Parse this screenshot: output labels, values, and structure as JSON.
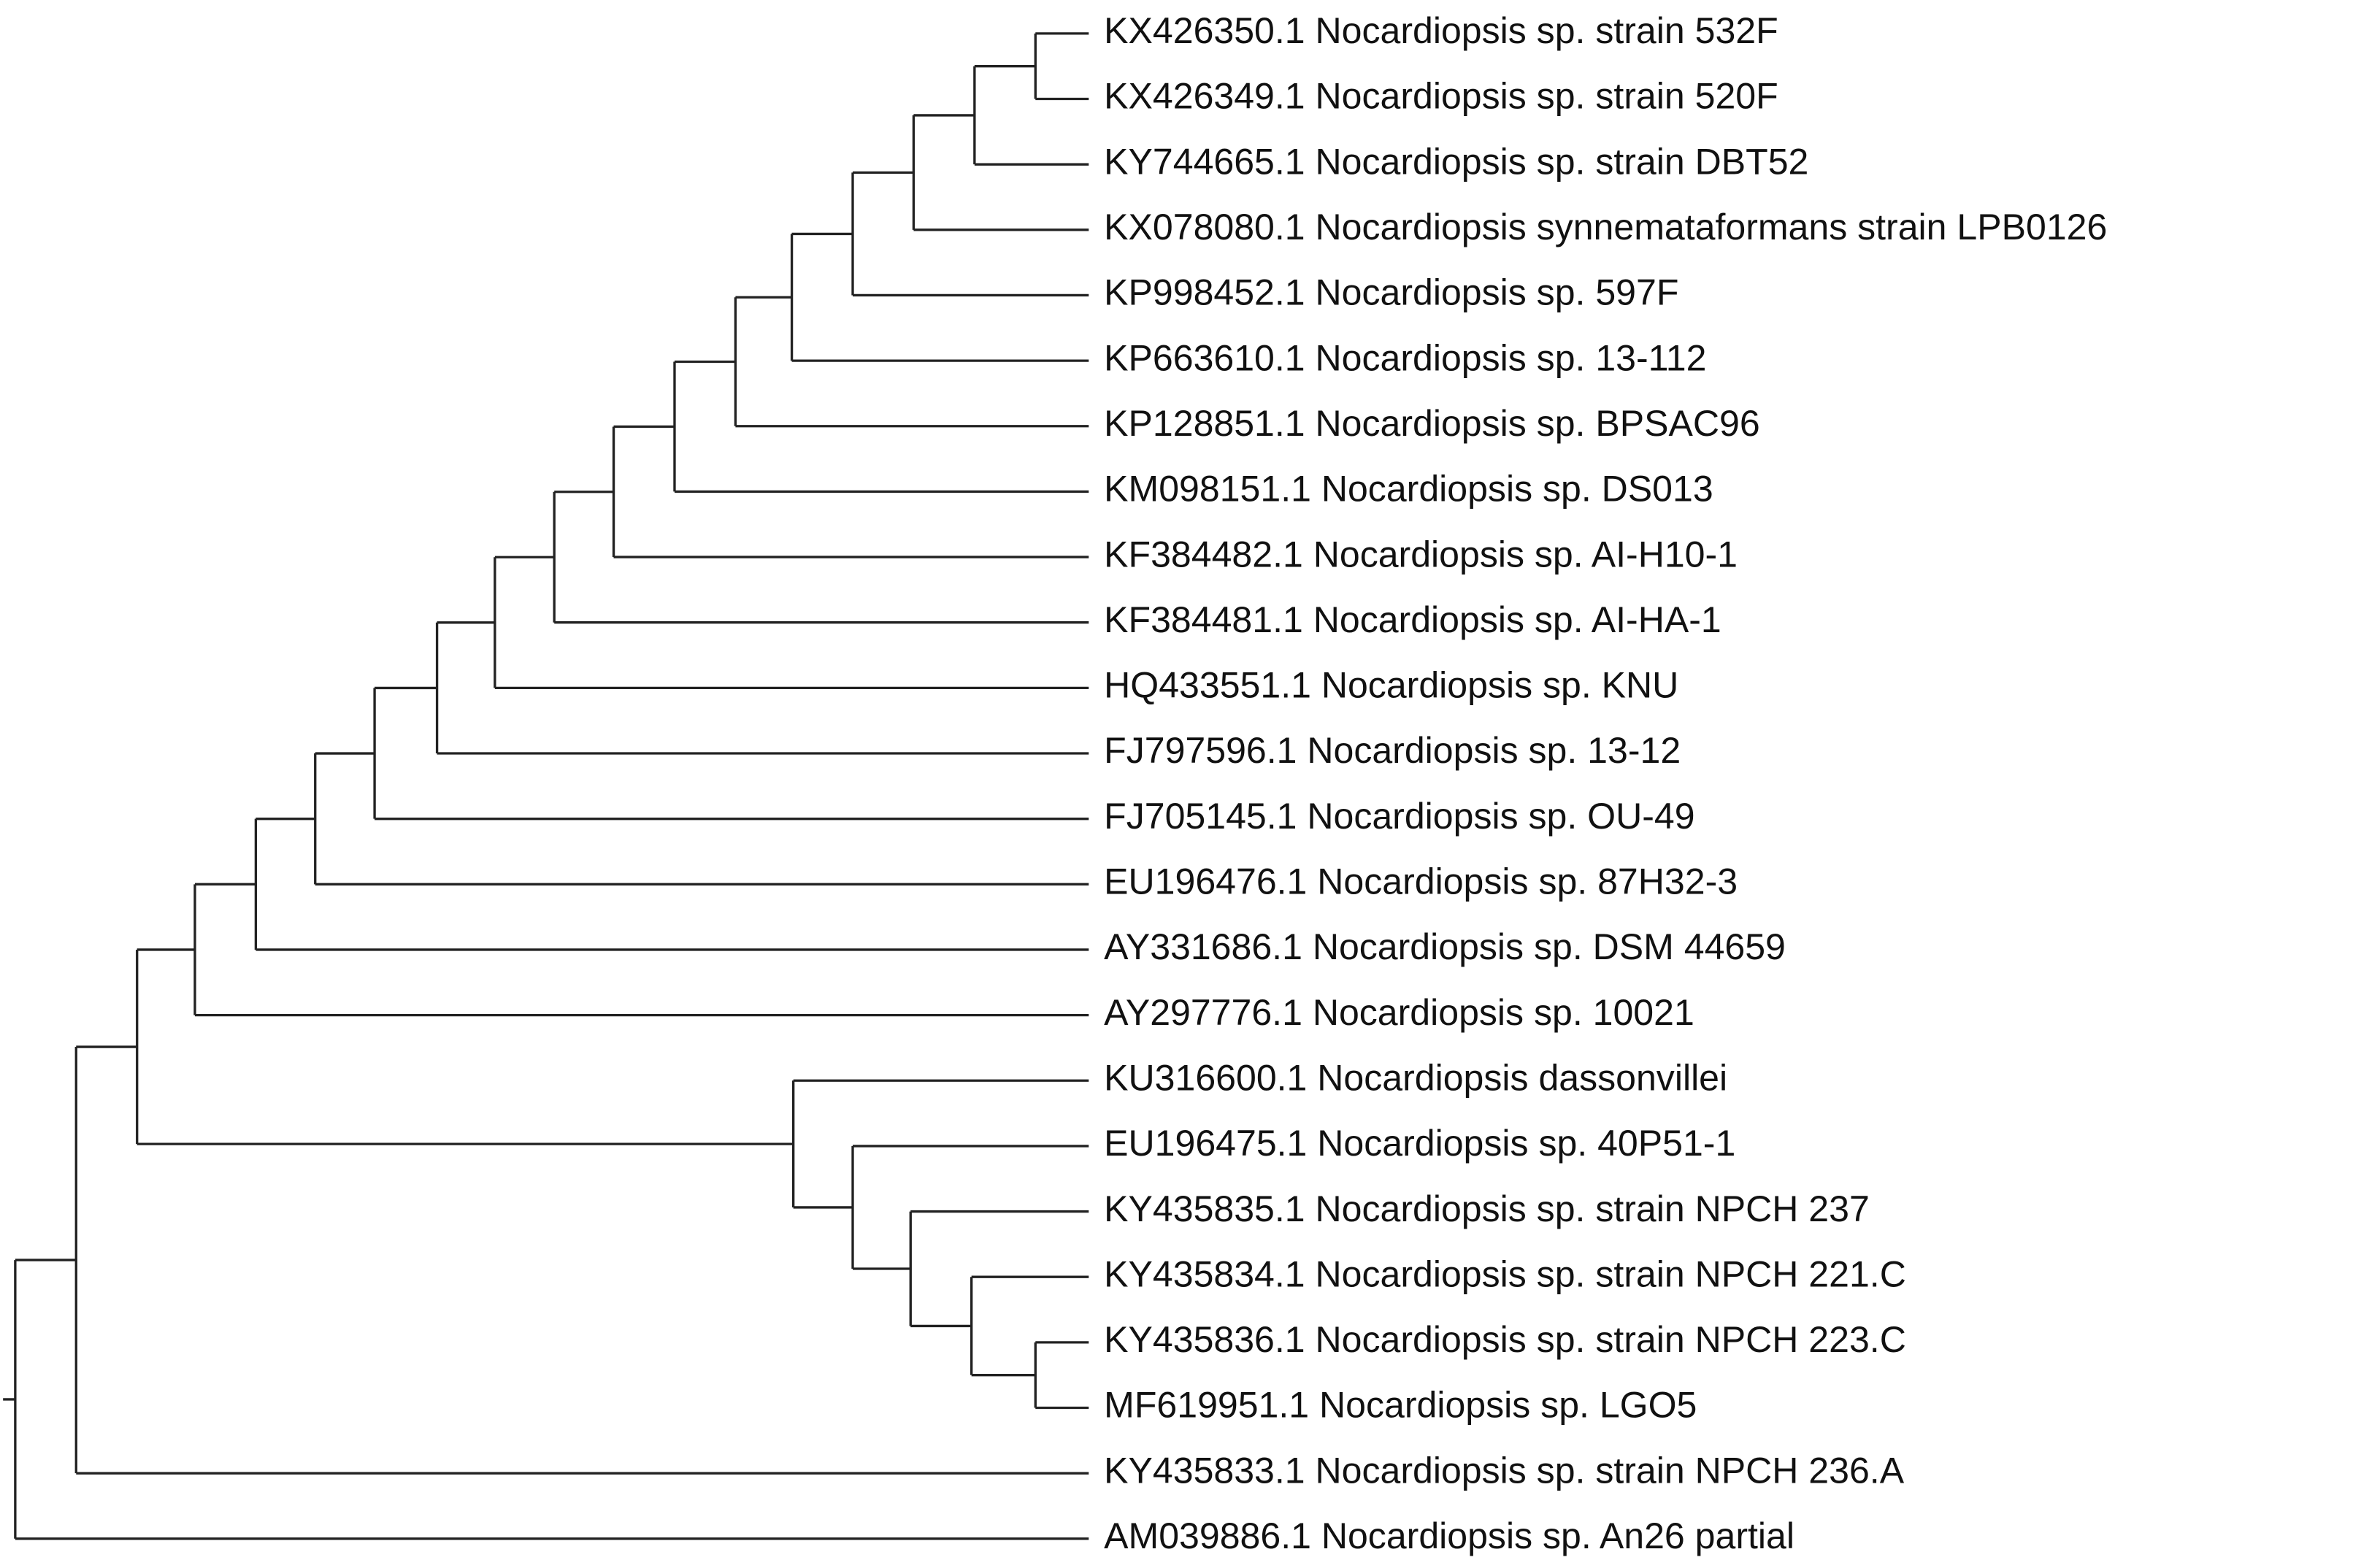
{
  "leaves": [
    "KX426350.1 Nocardiopsis sp. strain 532F",
    "KX426349.1 Nocardiopsis sp. strain 520F",
    "KY744665.1 Nocardiopsis sp. strain DBT52",
    "KX078080.1 Nocardiopsis synnemataformans strain LPB0126",
    "KP998452.1 Nocardiopsis sp. 597F",
    "KP663610.1 Nocardiopsis sp. 13-112",
    "KP128851.1 Nocardiopsis sp. BPSAC96",
    "KM098151.1 Nocardiopsis sp. DS013",
    "KF384482.1 Nocardiopsis sp. AI-H10-1",
    "KF384481.1 Nocardiopsis sp. AI-HA-1",
    "HQ433551.1 Nocardiopsis sp. KNU",
    "FJ797596.1 Nocardiopsis sp. 13-12",
    "FJ705145.1 Nocardiopsis sp. OU-49",
    "EU196476.1 Nocardiopsis sp. 87H32-3",
    "AY331686.1 Nocardiopsis sp. DSM 44659",
    "AY297776.1 Nocardiopsis sp. 10021",
    "KU316600.1 Nocardiopsis dassonvillei",
    "EU196475.1 Nocardiopsis sp. 40P51-1",
    "KY435835.1 Nocardiopsis sp. strain NPCH 237",
    "KY435834.1 Nocardiopsis sp. strain NPCH 221.C",
    "KY435836.1 Nocardiopsis sp. strain NPCH 223.C",
    "MF619951.1 Nocardiopsis sp. LGO5",
    "KY435833.1 Nocardiopsis sp. strain NPCH 236.A",
    "AM039886.1 Nocardiopsis sp. An26 partial"
  ]
}
